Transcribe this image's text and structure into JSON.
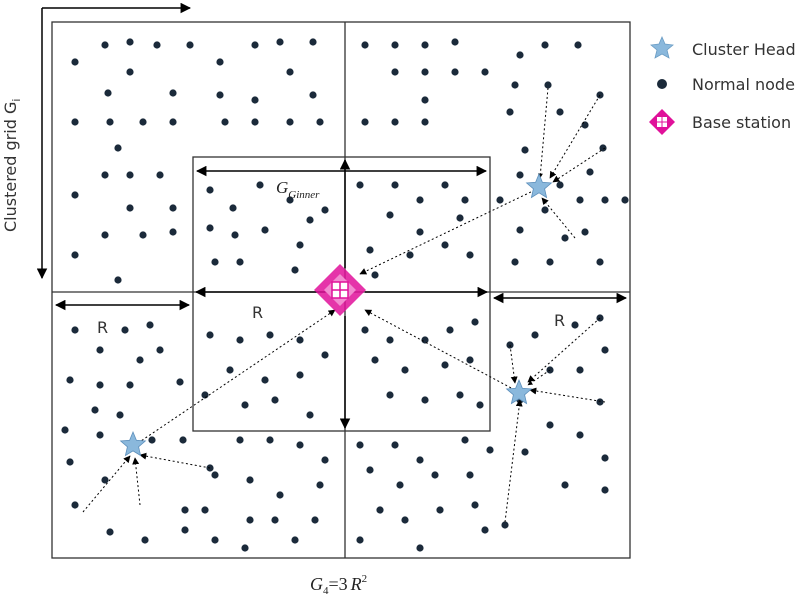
{
  "labels": {
    "y_axis_main": "Clustered grid G",
    "y_axis_sub": "i",
    "inner_main": "G",
    "inner_sub": "Ginner",
    "r_left": "R",
    "r_center": "R",
    "r_right": "R",
    "bottom_main": "G",
    "bottom_sub": "4",
    "bottom_eq": "=3",
    "bottom_r": "R",
    "bottom_exp": "2"
  },
  "legend": {
    "cluster_head": "Cluster Head",
    "normal_node": "Normal node",
    "base_station": "Base station"
  },
  "colors": {
    "node": "#1b2a3a",
    "cluster_head": "#8ab8dc",
    "base_station": "#e0119a"
  },
  "icons": {
    "cluster_head": "star-icon",
    "normal_node": "dot-icon",
    "base_station": "diamond-icon"
  }
}
